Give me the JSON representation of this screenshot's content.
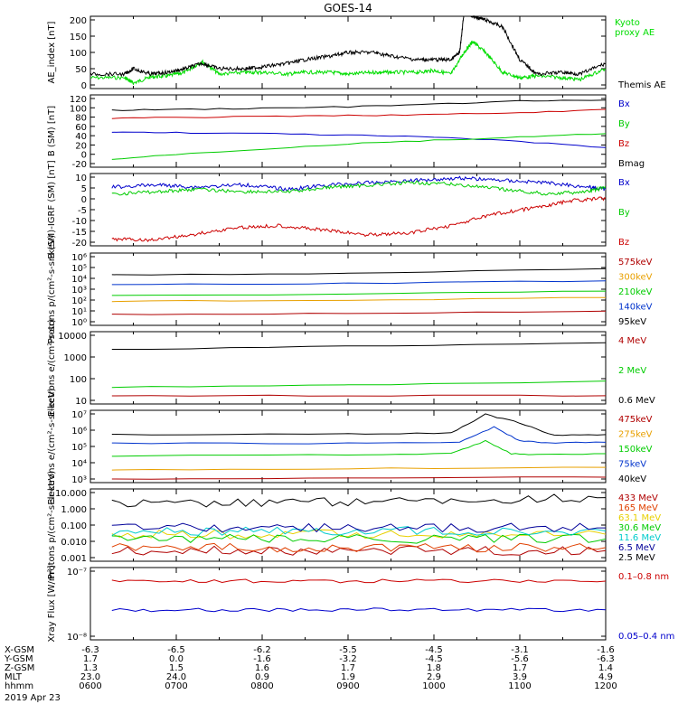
{
  "title": "GOES-14",
  "date_label": "2019 Apr 23",
  "x_axis": {
    "row_labels": [
      "X-GSM",
      "Y-GSM",
      "Z-GSM",
      "MLT",
      "hhmm"
    ],
    "columns": [
      {
        "time": "0600",
        "values": [
          "-6.3",
          "1.7",
          "1.3",
          "23.0",
          "0600"
        ]
      },
      {
        "time": "0700",
        "values": [
          "-6.5",
          "0.0",
          "1.5",
          "24.0",
          "0700"
        ]
      },
      {
        "time": "0800",
        "values": [
          "-6.2",
          "-1.6",
          "1.6",
          "0.9",
          "0800"
        ]
      },
      {
        "time": "0900",
        "values": [
          "-5.5",
          "-3.2",
          "1.7",
          "1.9",
          "0900"
        ]
      },
      {
        "time": "1000",
        "values": [
          "-4.5",
          "-4.5",
          "1.8",
          "2.9",
          "1000"
        ]
      },
      {
        "time": "1100",
        "values": [
          "-3.1",
          "-5.6",
          "1.7",
          "3.9",
          "1100"
        ]
      },
      {
        "time": "1200",
        "values": [
          "-1.6",
          "-6.3",
          "1.4",
          "4.9",
          "1200"
        ]
      }
    ]
  },
  "chart_data": [
    {
      "type": "line",
      "panel": "ae",
      "ylabel": "AE_index [nT]",
      "ylim": [
        0,
        200
      ],
      "yscale": "linear",
      "yticks": [
        "0",
        "50",
        "100",
        "150",
        "200"
      ],
      "x_range_hours": [
        6,
        12
      ],
      "series": [
        {
          "name": "Kyoto proxy AE",
          "color": "#00dd00",
          "x": [
            6.0,
            6.4,
            6.5,
            6.7,
            6.9,
            7.1,
            7.3,
            7.5,
            7.8,
            8.0,
            8.3,
            8.5,
            8.8,
            9.0,
            9.3,
            9.5,
            9.8,
            10.0,
            10.2,
            10.35,
            10.45,
            10.6,
            10.8,
            11.0,
            11.2,
            11.5,
            11.7,
            12.0
          ],
          "y": [
            30,
            30,
            15,
            32,
            35,
            45,
            75,
            40,
            45,
            45,
            40,
            45,
            45,
            40,
            45,
            45,
            45,
            50,
            40,
            100,
            130,
            100,
            45,
            30,
            35,
            30,
            25,
            55
          ]
        },
        {
          "name": "Themis AE",
          "color": "#000000",
          "x": [
            6.0,
            6.4,
            6.5,
            6.7,
            6.9,
            7.1,
            7.3,
            7.5,
            7.8,
            8.0,
            8.3,
            8.5,
            8.8,
            9.0,
            9.3,
            9.5,
            9.8,
            10.0,
            10.2,
            10.3,
            10.35,
            10.45,
            10.6,
            10.8,
            11.0,
            11.2,
            11.5,
            11.7,
            12.0
          ],
          "y": [
            40,
            40,
            55,
            40,
            45,
            55,
            70,
            55,
            55,
            60,
            70,
            80,
            90,
            100,
            100,
            90,
            80,
            80,
            80,
            100,
            210,
            200,
            190,
            170,
            80,
            40,
            45,
            40,
            70
          ]
        }
      ]
    },
    {
      "type": "line",
      "panel": "bsm",
      "ylabel": "B (SM) [nT]",
      "ylim": [
        -20,
        120
      ],
      "yscale": "linear",
      "yticks": [
        "-20",
        "0",
        "20",
        "40",
        "60",
        "80",
        "100",
        "120"
      ],
      "x_range_hours": [
        6.25,
        12
      ],
      "series": [
        {
          "name": "Bx",
          "color": "#0000cc",
          "x": [
            6.25,
            7,
            8,
            9,
            10,
            11,
            12
          ],
          "y": [
            48,
            47,
            45,
            42,
            38,
            30,
            18
          ]
        },
        {
          "name": "By",
          "color": "#00cc00",
          "x": [
            6.25,
            7,
            8,
            9,
            10,
            11,
            12
          ],
          "y": [
            -5,
            5,
            15,
            25,
            32,
            38,
            45
          ]
        },
        {
          "name": "Bz",
          "color": "#cc0000",
          "x": [
            6.25,
            7,
            8,
            9,
            10,
            11,
            12
          ],
          "y": [
            75,
            76,
            78,
            80,
            82,
            85,
            92
          ]
        },
        {
          "name": "Bmag",
          "color": "#000000",
          "x": [
            6.25,
            7,
            8,
            9,
            10,
            11,
            12
          ],
          "y": [
            90,
            92,
            94,
            97,
            102,
            108,
            110
          ]
        }
      ]
    },
    {
      "type": "line",
      "panel": "bigrf",
      "ylabel": "B (SM)-IGRF (SM) [nT]",
      "ylim": [
        -22,
        10
      ],
      "yscale": "linear",
      "yticks": [
        "-20",
        "-15",
        "-10",
        "-5",
        "0",
        "5",
        "10"
      ],
      "x_range_hours": [
        6.25,
        12
      ],
      "series": [
        {
          "name": "Bx",
          "color": "#0000cc",
          "x": [
            6.25,
            6.8,
            7.2,
            7.8,
            8.3,
            8.8,
            9.3,
            9.8,
            10.3,
            10.8,
            11.3,
            11.8,
            12.0
          ],
          "y": [
            4,
            5,
            4,
            5,
            3,
            5,
            6,
            7,
            8,
            7,
            6,
            4,
            3
          ]
        },
        {
          "name": "By",
          "color": "#00cc00",
          "x": [
            6.25,
            6.8,
            7.2,
            7.8,
            8.3,
            8.8,
            9.3,
            9.8,
            10.3,
            10.8,
            11.3,
            11.8,
            12.0
          ],
          "y": [
            1,
            2,
            3,
            2,
            2,
            4,
            5,
            6,
            5,
            3,
            1,
            2,
            4
          ]
        },
        {
          "name": "Bz",
          "color": "#cc0000",
          "x": [
            6.25,
            6.7,
            7.2,
            7.7,
            8.2,
            8.7,
            9.2,
            9.7,
            10.2,
            10.7,
            11.2,
            11.6,
            12.0
          ],
          "y": [
            -19,
            -19.5,
            -17,
            -14,
            -13,
            -15,
            -17,
            -16.5,
            -13,
            -8,
            -5,
            -2,
            -1
          ]
        }
      ]
    },
    {
      "type": "line",
      "panel": "protons",
      "ylabel": "Protons p/(cm²-s-sr-keV)",
      "ylim": [
        1,
        1000000
      ],
      "yscale": "log",
      "yticks": [
        "10⁰",
        "10¹",
        "10²",
        "10³",
        "10⁴",
        "10⁵",
        "10⁶"
      ],
      "x_range_hours": [
        6.25,
        12
      ],
      "series": [
        {
          "name": "575keV",
          "color": "#b00000",
          "x": [
            6.25,
            9,
            12
          ],
          "y": [
            8,
            10,
            15
          ]
        },
        {
          "name": "300keV",
          "color": "#e8a000",
          "x": [
            6.25,
            9,
            12
          ],
          "y": [
            100,
            130,
            200
          ]
        },
        {
          "name": "210keV",
          "color": "#00cc00",
          "x": [
            6.25,
            9,
            12
          ],
          "y": [
            300,
            400,
            700
          ]
        },
        {
          "name": "140keV",
          "color": "#0033cc",
          "x": [
            6.25,
            9,
            12
          ],
          "y": [
            2500,
            3000,
            5000
          ]
        },
        {
          "name": "95keV",
          "color": "#000000",
          "x": [
            6.25,
            9,
            12
          ],
          "y": [
            15000,
            20000,
            50000
          ]
        }
      ]
    },
    {
      "type": "line",
      "panel": "electrons_mev",
      "ylabel": "Electrons e/(cm²-s-sr)",
      "ylim": [
        10,
        10000
      ],
      "yscale": "log",
      "yticks": [
        "10",
        "100",
        "1000",
        "10000"
      ],
      "x_range_hours": [
        6.25,
        12
      ],
      "series": [
        {
          "name": "4 MeV",
          "color": "#b00000",
          "x": [
            6.25,
            9,
            12
          ],
          "y": [
            22,
            22,
            22
          ]
        },
        {
          "name": "2 MeV",
          "color": "#00cc00",
          "x": [
            6.25,
            9,
            12
          ],
          "y": [
            50,
            60,
            90
          ]
        },
        {
          "name": "0.6 MeV",
          "color": "#000000",
          "x": [
            6.25,
            9,
            12
          ],
          "y": [
            1800,
            2500,
            3500
          ]
        }
      ]
    },
    {
      "type": "line",
      "panel": "electrons_kev",
      "ylabel": "Electrons e/(cm²-s-sr-keV)",
      "ylim": [
        1000,
        10000000
      ],
      "yscale": "log",
      "yticks": [
        "10³",
        "10⁴",
        "10⁵",
        "10⁶",
        "10⁷"
      ],
      "x_range_hours": [
        6.25,
        12
      ],
      "series": [
        {
          "name": "475keV",
          "color": "#b00000",
          "x": [
            6.25,
            9,
            12
          ],
          "y": [
            1600,
            1800,
            2000
          ]
        },
        {
          "name": "275keV",
          "color": "#e8a000",
          "x": [
            6.25,
            9,
            12
          ],
          "y": [
            5000,
            6000,
            7000
          ]
        },
        {
          "name": "150keV",
          "color": "#00cc00",
          "x": [
            6.25,
            9,
            10.2,
            10.6,
            10.9,
            11.2,
            12
          ],
          "y": [
            30000,
            35000,
            40000,
            200000,
            40000,
            35000,
            40000
          ]
        },
        {
          "name": "75keV",
          "color": "#0033cc",
          "x": [
            6.25,
            9,
            10.3,
            10.7,
            11.0,
            11.3,
            12
          ],
          "y": [
            150000,
            150000,
            170000,
            1200000,
            200000,
            160000,
            170000
          ]
        },
        {
          "name": "40keV",
          "color": "#000000",
          "x": [
            6.25,
            9,
            10.2,
            10.6,
            11.0,
            11.4,
            12
          ],
          "y": [
            450000,
            480000,
            550000,
            6000000,
            2000000,
            400000,
            450000
          ]
        }
      ]
    },
    {
      "type": "line",
      "panel": "protons_mev",
      "ylabel": "Protons p/(cm²-s-sr-keV)",
      "ylim": [
        0.0005,
        30
      ],
      "yscale": "log",
      "yticks": [
        "0.001",
        "0.010",
        "0.100",
        "1.000",
        "10.000"
      ],
      "x_range_hours": [
        6.25,
        12
      ],
      "series": [
        {
          "name": "433 MeV",
          "color": "#b00000",
          "x": [
            6.25,
            9,
            12
          ],
          "y": [
            0.0025,
            0.0025,
            0.0025
          ]
        },
        {
          "name": "165 MeV",
          "color": "#e04000",
          "x": [
            6.25,
            9,
            12
          ],
          "y": [
            0.004,
            0.004,
            0.004
          ]
        },
        {
          "name": "63.1 MeV",
          "color": "#e8d000",
          "x": [
            6.25,
            9,
            12
          ],
          "y": [
            0.03,
            0.03,
            0.03
          ]
        },
        {
          "name": "30.6 MeV",
          "color": "#00cc00",
          "x": [
            6.25,
            9,
            12
          ],
          "y": [
            0.015,
            0.015,
            0.015
          ]
        },
        {
          "name": "11.6 MeV",
          "color": "#00cccc",
          "x": [
            6.25,
            9,
            12
          ],
          "y": [
            0.05,
            0.05,
            0.05
          ]
        },
        {
          "name": "6.5 MeV",
          "color": "#000099",
          "x": [
            6.25,
            9,
            12
          ],
          "y": [
            0.08,
            0.08,
            0.08
          ]
        },
        {
          "name": "2.5 MeV",
          "color": "#000000",
          "x": [
            6.25,
            9,
            12
          ],
          "y": [
            3.5,
            4.5,
            8
          ]
        }
      ]
    },
    {
      "type": "line",
      "panel": "xray",
      "ylabel": "Xray Flux [W/m²]",
      "ylim": [
        1e-08,
        1e-07
      ],
      "yscale": "log",
      "yticks": [
        "10⁻⁸",
        "10⁻⁷"
      ],
      "x_range_hours": [
        6.25,
        12
      ],
      "series": [
        {
          "name": "0.1–0.8 nm",
          "color": "#cc0000",
          "x": [
            6.25,
            9,
            12
          ],
          "y": [
            6.5e-08,
            6.5e-08,
            6.5e-08
          ]
        },
        {
          "name": "0.05–0.4 nm",
          "color": "#0000cc",
          "x": [
            6.25,
            9,
            12
          ],
          "y": [
            2.6e-08,
            2.6e-08,
            2.6e-08
          ]
        }
      ]
    }
  ]
}
